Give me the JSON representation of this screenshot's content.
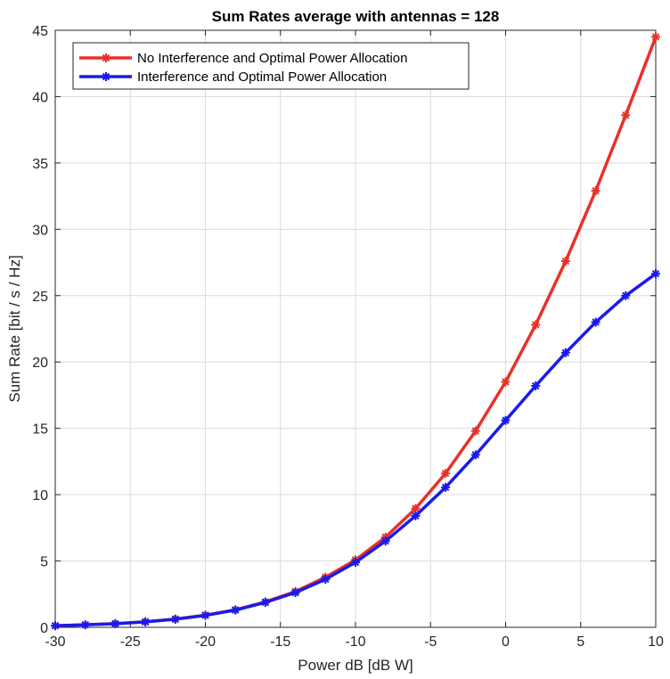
{
  "chart_data": {
    "type": "line",
    "title": "Sum Rates average with antennas = 128",
    "xlabel": "Power dB [dB W]",
    "ylabel": "Sum Rate [bit / s / Hz]",
    "xlim": [
      -30,
      10
    ],
    "ylim": [
      0,
      45
    ],
    "xticks": [
      -30,
      -25,
      -20,
      -15,
      -10,
      -5,
      0,
      5,
      10
    ],
    "yticks": [
      0,
      5,
      10,
      15,
      20,
      25,
      30,
      35,
      40,
      45
    ],
    "grid": true,
    "legend_position": "top-left",
    "x": [
      -30,
      -28,
      -26,
      -24,
      -22,
      -20,
      -18,
      -16,
      -14,
      -12,
      -10,
      -8,
      -6,
      -4,
      -2,
      0,
      2,
      4,
      6,
      8,
      10
    ],
    "series": [
      {
        "name": "No Interference and Optimal Power Allocation",
        "color": "#e8312a",
        "marker": "asterisk",
        "values": [
          0.12,
          0.19,
          0.28,
          0.42,
          0.62,
          0.92,
          1.32,
          1.92,
          2.7,
          3.78,
          5.08,
          6.8,
          8.95,
          11.6,
          14.8,
          18.5,
          22.8,
          27.6,
          32.9,
          38.6,
          44.5
        ]
      },
      {
        "name": "Interference and Optimal Power Allocation",
        "color": "#1a1aed",
        "marker": "asterisk",
        "values": [
          0.12,
          0.19,
          0.27,
          0.41,
          0.61,
          0.9,
          1.3,
          1.88,
          2.62,
          3.62,
          4.9,
          6.5,
          8.4,
          10.55,
          13.0,
          15.6,
          18.2,
          20.7,
          23.0,
          25.0,
          26.65
        ]
      }
    ]
  }
}
